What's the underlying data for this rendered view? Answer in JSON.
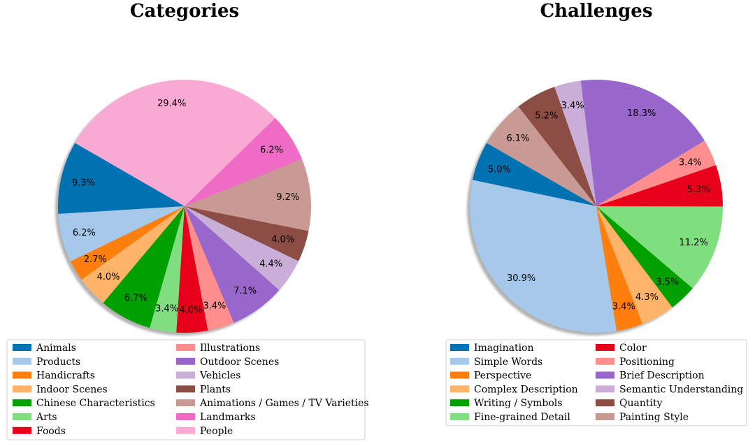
{
  "chart_data": [
    {
      "type": "pie",
      "title": "Categories",
      "labels": [
        "Animals",
        "Products",
        "Handicrafts",
        "Indoor Scenes",
        "Chinese Characteristics",
        "Arts",
        "Foods",
        "Illustrations",
        "Outdoor Scenes",
        "Vehicles",
        "Plants",
        "Animations / Games / TV Varieties",
        "Landmarks",
        "People"
      ],
      "values": [
        9.3,
        6.2,
        2.7,
        4.0,
        6.7,
        3.4,
        4.0,
        3.4,
        7.1,
        4.4,
        4.0,
        9.2,
        6.2,
        29.4
      ],
      "value_labels": [
        "9.3%",
        "6.2%",
        "2.7%",
        "4.0%",
        "6.7%",
        "3.4%",
        "4.0%",
        "3.4%",
        "7.1%",
        "4.4%",
        "4.0%",
        "9.2%",
        "6.2%",
        "29.4%"
      ],
      "colors": [
        "#0072b2",
        "#a6c8ea",
        "#ff7f0e",
        "#ffb469",
        "#00a000",
        "#7fdf7f",
        "#e8001a",
        "#ff8f8f",
        "#9966cc",
        "#c9aed8",
        "#8c4d45",
        "#c89a93",
        "#ef6bc5",
        "#f9aad4"
      ],
      "start_angle_deg": 150,
      "direction": "counterclockwise",
      "shadow": true,
      "legend_position": "bottom"
    },
    {
      "type": "pie",
      "title": "Challenges",
      "labels": [
        "Imagination",
        "Simple Words",
        "Perspective",
        "Complex Description",
        "Writing / Symbols",
        "Fine-grained Detail",
        "Color",
        "Positioning",
        "Brief Description",
        "Semantic Understanding",
        "Quantity",
        "Painting Style"
      ],
      "values": [
        5.0,
        30.9,
        3.4,
        4.3,
        3.5,
        11.2,
        5.3,
        3.4,
        18.3,
        3.4,
        5.2,
        6.1
      ],
      "value_labels": [
        "5.0%",
        "30.9%",
        "3.4%",
        "4.3%",
        "3.5%",
        "11.2%",
        "5.3%",
        "3.4%",
        "18.3%",
        "3.4%",
        "5.2%",
        "6.1%"
      ],
      "colors": [
        "#0072b2",
        "#a6c8ea",
        "#ff7f0e",
        "#ffb469",
        "#00a000",
        "#7fdf7f",
        "#e8001a",
        "#ff8f8f",
        "#9966cc",
        "#c9aed8",
        "#8c4d45",
        "#c89a93"
      ],
      "start_angle_deg": 150,
      "direction": "counterclockwise",
      "shadow": true,
      "legend_position": "bottom"
    }
  ]
}
